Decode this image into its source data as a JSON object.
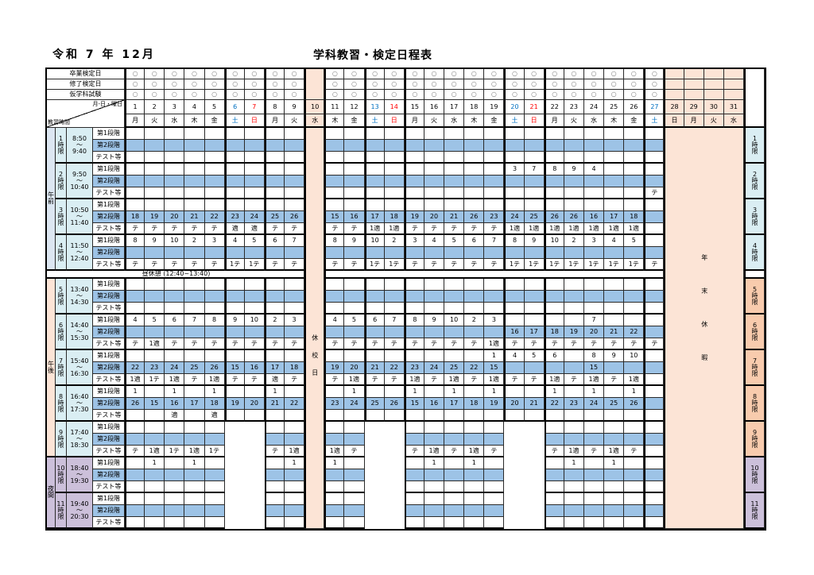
{
  "title_left": "令和 7 年 12月",
  "title_center": "学科教習・検定日程表",
  "header": {
    "exam_rows": [
      "卒業検定日",
      "修了検定日",
      "仮学科試験"
    ],
    "corner_top": "月-日・曜日",
    "corner_bottom": "教習時間",
    "circle": "○",
    "dates": [
      1,
      2,
      3,
      4,
      5,
      6,
      7,
      8,
      9,
      10,
      11,
      12,
      13,
      14,
      15,
      16,
      17,
      18,
      19,
      20,
      21,
      22,
      23,
      24,
      25,
      26,
      27,
      28,
      29,
      30,
      31
    ],
    "days": [
      "月",
      "火",
      "水",
      "木",
      "金",
      "土",
      "日",
      "月",
      "火",
      "水",
      "木",
      "金",
      "土",
      "日",
      "月",
      "火",
      "水",
      "木",
      "金",
      "土",
      "日",
      "月",
      "火",
      "水",
      "木",
      "金",
      "土",
      "日",
      "月",
      "火",
      "水"
    ],
    "saturdays": [
      6,
      13,
      20,
      27
    ],
    "sundays": [
      7,
      14,
      21
    ],
    "closed_date": 10,
    "yearend_dates": [
      28,
      29,
      30,
      31
    ]
  },
  "labels": {
    "closed_column": "休校日",
    "closed_chars": [
      "休",
      "校",
      "日"
    ],
    "yearend": "年末休暇",
    "yearend_chars": [
      "年",
      "末",
      "休",
      "暇"
    ],
    "lunch": "昼休憩 (12:40~13:40)",
    "tilde": "〜",
    "hour": "時",
    "gen": "限",
    "stage_labels": [
      "第1段階",
      "第2段階",
      "テスト等"
    ]
  },
  "sections": [
    {
      "label": "午前",
      "chars": [
        "午",
        "前"
      ],
      "periods": [
        1,
        4
      ]
    },
    {
      "label": "午後",
      "chars": [
        "午",
        "後"
      ],
      "periods": [
        5,
        9
      ]
    },
    {
      "label": "夜間",
      "chars": [
        "夜",
        "間"
      ],
      "periods": [
        10,
        11
      ]
    }
  ],
  "gap_columns": [
    6,
    7,
    13,
    14,
    20,
    21
  ],
  "gap_periods": [
    9,
    10,
    11
  ],
  "colors": {
    "stage2_blue": "#9dc3e6",
    "left_cyan": "#daeef3",
    "closed_peach": "#fce4d6",
    "right_peach": "#f8cbad",
    "night_lavender": "#ccc0da",
    "saturday": "#0070c0",
    "sunday": "#ff0000",
    "circle_gray": "#7f7f7f"
  },
  "periods": [
    {
      "no": "1",
      "start": "8:50",
      "end": "9:40",
      "rows": {
        "stage1": {},
        "stage2": {},
        "test": {}
      }
    },
    {
      "no": "2",
      "start": "9:50",
      "end": "10:40",
      "rows": {
        "stage1": {
          "20": "3",
          "21": "7",
          "22": "8",
          "23": "9",
          "24": "4"
        },
        "stage2": {},
        "test": {
          "27": "テ"
        }
      }
    },
    {
      "no": "3",
      "start": "10:50",
      "end": "11:40",
      "rows": {
        "stage1": {},
        "stage2": {
          "1": "18",
          "2": "19",
          "3": "20",
          "4": "21",
          "5": "22",
          "6": "23",
          "7": "24",
          "8": "25",
          "9": "26",
          "11": "15",
          "12": "16",
          "13": "17",
          "14": "18",
          "15": "19",
          "16": "20",
          "17": "21",
          "18": "26",
          "19": "23",
          "20": "24",
          "21": "25",
          "22": "26",
          "23": "26",
          "24": "16",
          "25": "17",
          "26": "18"
        },
        "test": {
          "1": "テ",
          "2": "テ",
          "3": "テ",
          "4": "テ",
          "5": "テ",
          "6": "適",
          "7": "適",
          "8": "テ",
          "9": "テ",
          "11": "テ",
          "12": "テ",
          "13": "1適",
          "14": "1適",
          "15": "テ",
          "16": "テ",
          "17": "テ",
          "18": "テ",
          "19": "テ",
          "20": "1適",
          "21": "1適",
          "22": "1適",
          "23": "1適",
          "24": "1適",
          "25": "1適",
          "26": "1適"
        }
      }
    },
    {
      "no": "4",
      "start": "11:50",
      "end": "12:40",
      "rows": {
        "stage1": {
          "1": "8",
          "2": "9",
          "3": "10",
          "4": "2",
          "5": "3",
          "6": "4",
          "7": "5",
          "8": "6",
          "9": "7",
          "11": "8",
          "12": "9",
          "13": "10",
          "14": "2",
          "15": "3",
          "16": "4",
          "17": "5",
          "18": "6",
          "19": "7",
          "20": "8",
          "21": "9",
          "22": "10",
          "23": "2",
          "24": "3",
          "25": "4",
          "26": "5"
        },
        "stage2": {},
        "test": {
          "1": "テ",
          "2": "テ",
          "3": "テ",
          "4": "テ",
          "5": "テ",
          "6": "1テ",
          "7": "1テ",
          "8": "テ",
          "9": "テ",
          "11": "テ",
          "12": "テ",
          "13": "1テ",
          "14": "1テ",
          "15": "テ",
          "16": "テ",
          "17": "テ",
          "18": "テ",
          "19": "テ",
          "20": "1テ",
          "21": "1テ",
          "22": "1テ",
          "23": "1テ",
          "24": "1テ",
          "25": "1テ",
          "26": "1テ",
          "27": "テ"
        }
      }
    },
    {
      "no": "5",
      "start": "13:40",
      "end": "14:30",
      "rows": {
        "stage1": {},
        "stage2": {},
        "test": {}
      }
    },
    {
      "no": "6",
      "start": "14:40",
      "end": "15:30",
      "rows": {
        "stage1": {
          "1": "4",
          "2": "5",
          "3": "6",
          "4": "7",
          "5": "8",
          "6": "9",
          "7": "10",
          "8": "2",
          "9": "3",
          "11": "4",
          "12": "5",
          "13": "6",
          "14": "7",
          "15": "8",
          "16": "9",
          "17": "10",
          "18": "2",
          "19": "3",
          "24": "7"
        },
        "stage2": {
          "20": "16",
          "21": "17",
          "22": "18",
          "23": "19",
          "24": "20",
          "25": "21",
          "26": "22"
        },
        "test": {
          "1": "テ",
          "2": "1適",
          "3": "テ",
          "4": "テ",
          "5": "テ",
          "6": "テ",
          "7": "テ",
          "8": "テ",
          "9": "テ",
          "11": "テ",
          "12": "テ",
          "13": "テ",
          "14": "テ",
          "15": "テ",
          "16": "テ",
          "17": "テ",
          "18": "テ",
          "19": "1適",
          "20": "テ",
          "21": "テ",
          "22": "テ",
          "23": "テ",
          "24": "テ",
          "25": "テ",
          "26": "テ",
          "27": "テ"
        }
      }
    },
    {
      "no": "7",
      "start": "15:40",
      "end": "16:30",
      "rows": {
        "stage1": {
          "19": "1",
          "20": "4",
          "21": "5",
          "22": "6",
          "24": "8",
          "25": "9",
          "26": "10"
        },
        "stage2": {
          "1": "22",
          "2": "23",
          "3": "24",
          "4": "25",
          "5": "26",
          "6": "15",
          "7": "16",
          "8": "17",
          "9": "18",
          "11": "19",
          "12": "20",
          "13": "21",
          "14": "22",
          "15": "23",
          "16": "24",
          "17": "25",
          "18": "22",
          "19": "15",
          "24": "15"
        },
        "test": {
          "1": "1適",
          "2": "1テ",
          "3": "1適",
          "4": "テ",
          "5": "1適",
          "6": "テ",
          "7": "テ",
          "8": "適",
          "9": "テ",
          "11": "テ",
          "12": "1適",
          "13": "テ",
          "14": "テ",
          "15": "1適",
          "16": "テ",
          "17": "1適",
          "18": "テ",
          "19": "1適",
          "20": "テ",
          "21": "テ",
          "22": "1適",
          "23": "テ",
          "24": "1適",
          "25": "テ",
          "26": "1適"
        }
      }
    },
    {
      "no": "8",
      "start": "16:40",
      "end": "17:30",
      "rows": {
        "stage1": {
          "1": "1",
          "3": "1",
          "5": "1",
          "8": "1",
          "12": "1",
          "15": "1",
          "17": "1",
          "19": "1",
          "22": "1",
          "24": "1",
          "26": "1"
        },
        "stage2": {
          "1": "26",
          "2": "15",
          "3": "16",
          "4": "17",
          "5": "18",
          "6": "19",
          "7": "20",
          "8": "21",
          "9": "22",
          "11": "23",
          "12": "24",
          "13": "25",
          "14": "26",
          "15": "15",
          "16": "16",
          "17": "17",
          "18": "18",
          "19": "19",
          "20": "20",
          "21": "21",
          "22": "22",
          "23": "23",
          "24": "24",
          "25": "25",
          "26": "26"
        },
        "test": {
          "3": "適",
          "5": "適"
        }
      }
    },
    {
      "no": "9",
      "start": "17:40",
      "end": "18:30",
      "rows": {
        "stage1": {},
        "stage2": {},
        "test": {
          "1": "テ",
          "2": "1適",
          "3": "1テ",
          "4": "1適",
          "5": "1テ",
          "8": "テ",
          "9": "1適",
          "11": "1適",
          "12": "テ",
          "15": "テ",
          "16": "1適",
          "17": "テ",
          "18": "1適",
          "19": "テ",
          "22": "テ",
          "23": "1適",
          "24": "テ",
          "25": "1適",
          "26": "テ"
        }
      }
    },
    {
      "no": "10",
      "start": "18:40",
      "end": "19:30",
      "rows": {
        "stage1": {
          "2": "1",
          "4": "1",
          "9": "1",
          "11": "1",
          "16": "1",
          "18": "1",
          "23": "1",
          "25": "1"
        },
        "stage2": {},
        "test": {}
      }
    },
    {
      "no": "11",
      "start": "19:40",
      "end": "20:30",
      "rows": {
        "stage1": {},
        "stage2": {},
        "test": {}
      }
    }
  ]
}
